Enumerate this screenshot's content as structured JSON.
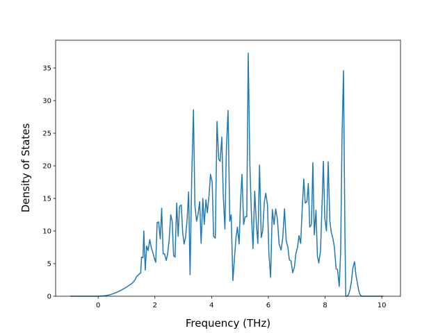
{
  "chart_data": {
    "type": "line",
    "xlabel": "Frequency (THz)",
    "ylabel": "Density of States",
    "color": "#1f77b4",
    "x": [
      -0.98,
      0,
      0.2,
      0.4,
      0.6,
      0.8,
      1.0,
      1.2,
      1.3,
      1.35,
      1.45,
      1.5,
      1.53,
      1.58,
      1.61,
      1.66,
      1.71,
      1.76,
      1.82,
      1.87,
      1.92,
      1.97,
      2.03,
      2.08,
      2.13,
      2.19,
      2.24,
      2.29,
      2.34,
      2.4,
      2.45,
      2.5,
      2.56,
      2.61,
      2.66,
      2.71,
      2.77,
      2.82,
      2.87,
      2.93,
      2.98,
      3.03,
      3.08,
      3.14,
      3.19,
      3.24,
      3.3,
      3.36,
      3.41,
      3.47,
      3.52,
      3.58,
      3.63,
      3.69,
      3.74,
      3.8,
      3.85,
      3.91,
      3.96,
      4.02,
      4.07,
      4.13,
      4.19,
      4.25,
      4.3,
      4.36,
      4.41,
      4.47,
      4.52,
      4.58,
      4.64,
      4.69,
      4.75,
      4.8,
      4.86,
      4.91,
      4.97,
      5.02,
      5.07,
      5.13,
      5.18,
      5.24,
      5.29,
      5.35,
      5.4,
      5.46,
      5.52,
      5.58,
      5.63,
      5.69,
      5.75,
      5.8,
      5.86,
      5.91,
      5.97,
      6.02,
      6.08,
      6.14,
      6.2,
      6.26,
      6.32,
      6.38,
      6.45,
      6.51,
      6.57,
      6.63,
      6.69,
      6.74,
      6.8,
      6.86,
      6.92,
      6.97,
      7.03,
      7.08,
      7.14,
      7.19,
      7.25,
      7.3,
      7.36,
      7.41,
      7.46,
      7.52,
      7.57,
      7.62,
      7.68,
      7.73,
      7.78,
      7.84,
      7.89,
      7.94,
      7.99,
      8.05,
      8.11,
      8.17,
      8.22,
      8.28,
      8.33,
      8.39,
      8.44,
      8.5,
      8.55,
      8.6,
      8.65,
      8.7,
      8.73,
      8.78,
      8.83,
      8.88,
      8.93,
      8.98,
      9.04,
      9.09,
      9.14,
      9.19,
      9.24,
      9.29,
      10.05
    ],
    "values": [
      0,
      0,
      0.05,
      0.2,
      0.5,
      0.9,
      1.4,
      2.0,
      2.5,
      3.0,
      3.4,
      3.6,
      6,
      5.9,
      10,
      4,
      7.7,
      7,
      8.7,
      7.5,
      6.8,
      6,
      5.2,
      11.3,
      11.4,
      8.8,
      13.5,
      6.5,
      6.5,
      5.5,
      6.5,
      8.5,
      12.5,
      11.5,
      6.2,
      6,
      14.3,
      9.2,
      13.8,
      14,
      9.8,
      8,
      9,
      12,
      16,
      3.3,
      18.5,
      28.6,
      14,
      11.5,
      12.5,
      14.5,
      8.1,
      15,
      11,
      14.8,
      12.8,
      15.5,
      18.7,
      17.5,
      9.2,
      8.9,
      26.8,
      21,
      20.7,
      24.4,
      15.5,
      10.3,
      22.5,
      28.5,
      11.5,
      12.5,
      2.4,
      5.5,
      9,
      10.6,
      8,
      14.5,
      18.7,
      11,
      12.2,
      12.2,
      37.3,
      20,
      13,
      7.3,
      16.1,
      11,
      8.1,
      20.1,
      9,
      10,
      14.5,
      15.8,
      14,
      6.5,
      2.9,
      13.3,
      11,
      13.4,
      11.8,
      8,
      7.1,
      9,
      13.4,
      8.5,
      7.5,
      5.6,
      5.4,
      3.6,
      4.5,
      6.5,
      7.5,
      9.3,
      8.1,
      13,
      18,
      14.3,
      14.5,
      17.3,
      10.6,
      11,
      20.5,
      9.4,
      13.2,
      6.2,
      5.1,
      7,
      13.5,
      20.7,
      12,
      10,
      20.6,
      11.5,
      9.8,
      8.8,
      7.5,
      4.2,
      4.1,
      1.5,
      6.8,
      24.8,
      34.6,
      10,
      0,
      0,
      0.3,
      1,
      2.3,
      4.3,
      5.3,
      3.2,
      2,
      0.8,
      0.2,
      0,
      0
    ],
    "xlim": [
      -1.5,
      10.66
    ],
    "ylim": [
      0,
      39.26
    ],
    "xticks": [
      0,
      2,
      4,
      6,
      8,
      10
    ],
    "yticks": [
      0,
      5,
      10,
      15,
      20,
      25,
      30,
      35
    ],
    "grid": false
  }
}
